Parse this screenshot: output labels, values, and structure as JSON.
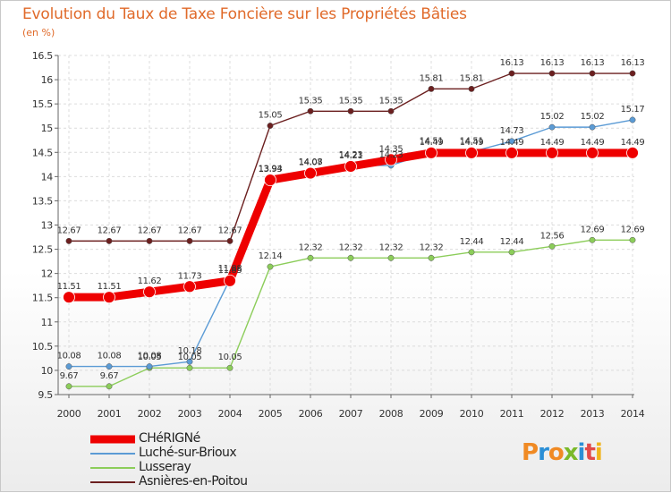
{
  "title": "Evolution du Taux de Taxe Foncière sur les Propriétés Bâties",
  "unit_label": "(en %)",
  "logo": {
    "text": "Proxiti",
    "colors": [
      "#f08a24",
      "#2b8fd6",
      "#f08a24",
      "#7ab929",
      "#2b8fd6",
      "#e24a4a",
      "#f0b41c"
    ]
  },
  "chart_data": {
    "type": "line",
    "title": "Evolution du Taux de Taxe Foncière sur les Propriétés Bâties",
    "ylabel": "(en %)",
    "xlabel": "",
    "ylim": [
      9.5,
      16.5
    ],
    "yticks": [
      "9.5",
      "10",
      "10.5",
      "11",
      "11.5",
      "12",
      "12.5",
      "13",
      "13.5",
      "14",
      "14.5",
      "15",
      "15.5",
      "16",
      "16.5"
    ],
    "grid": true,
    "categories": [
      "2000",
      "2001",
      "2002",
      "2003",
      "2004",
      "2005",
      "2006",
      "2007",
      "2008",
      "2009",
      "2010",
      "2011",
      "2012",
      "2013",
      "2014"
    ],
    "series": [
      {
        "name": "Asnières-en-Poitou",
        "color": "#6b1f1f",
        "values": [
          12.67,
          12.67,
          12.67,
          12.67,
          12.67,
          15.05,
          15.35,
          15.35,
          15.35,
          15.81,
          15.81,
          16.13,
          16.13,
          16.13,
          16.13
        ],
        "labels": [
          "12.67",
          "12.67",
          "12.67",
          "12.67",
          "12.67",
          "15.05",
          "15.35",
          "15.35",
          "15.35",
          "15.81",
          "15.81",
          "16.13",
          "16.13",
          "16.13",
          "16.13"
        ]
      },
      {
        "name": "Lusseray",
        "color": "#8ccd5a",
        "values": [
          9.67,
          9.67,
          10.05,
          10.05,
          10.05,
          12.14,
          12.32,
          12.32,
          12.32,
          12.32,
          12.44,
          12.44,
          12.56,
          12.69,
          12.69
        ],
        "labels": [
          "9.67",
          "9.67",
          "10.05",
          "10.05",
          "10.05",
          "12.14",
          "12.32",
          "12.32",
          "12.32",
          "12.32",
          "12.44",
          "12.44",
          "12.56",
          "12.69",
          "12.69"
        ]
      },
      {
        "name": "Luché-sur-Brioux",
        "color": "#5b9bd5",
        "values": [
          10.08,
          10.08,
          10.08,
          10.18,
          11.88,
          13.94,
          14.08,
          14.23,
          14.23,
          14.51,
          14.51,
          14.73,
          15.02,
          15.02,
          15.17
        ],
        "labels": [
          "10.08",
          "10.08",
          "10.08",
          "10.18",
          "11.88",
          "13.94",
          "14.08",
          "14.23",
          "14.23",
          "14.51",
          "14.51",
          "14.73",
          "15.02",
          "15.02",
          "15.17"
        ]
      },
      {
        "name": "CHéRIGNé",
        "color": "#ee0000",
        "values": [
          11.51,
          11.51,
          11.62,
          11.73,
          11.85,
          13.93,
          14.07,
          14.21,
          14.35,
          14.49,
          14.49,
          14.49,
          14.49,
          14.49,
          14.49
        ],
        "labels": [
          "11.51",
          "11.51",
          "11.62",
          "11.73",
          "11.85",
          "13.93",
          "14.07",
          "14.21",
          "14.35",
          "14.49",
          "14.49",
          "14.49",
          "14.49",
          "14.49",
          "14.49"
        ]
      }
    ],
    "legend": [
      "CHéRIGNé",
      "Luché-sur-Brioux",
      "Lusseray",
      "Asnières-en-Poitou"
    ],
    "legend_position": "bottom-left"
  }
}
